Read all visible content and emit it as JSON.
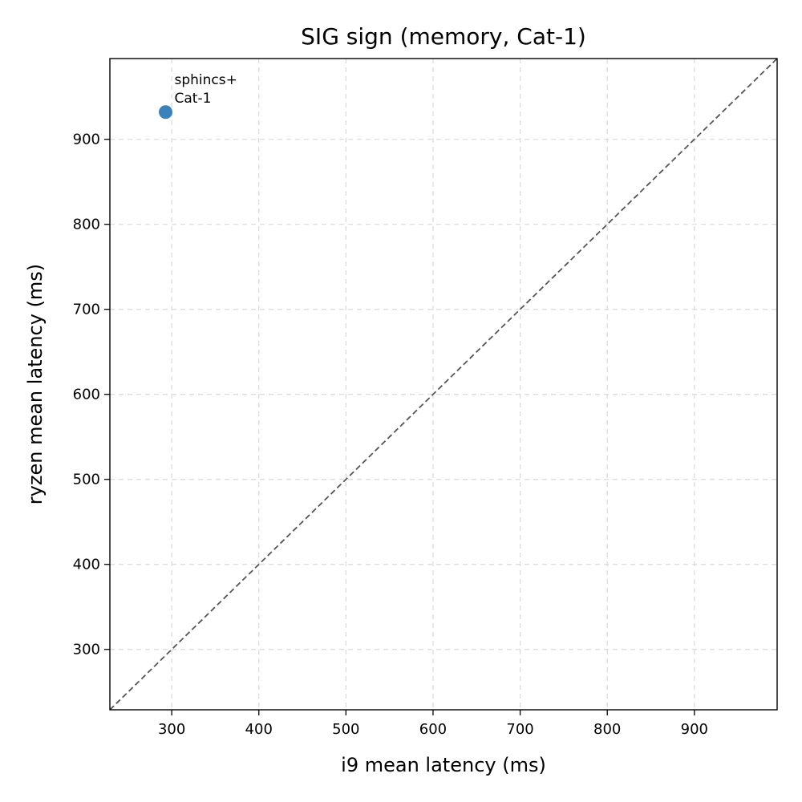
{
  "chart_data": {
    "type": "scatter",
    "title": "SIG sign (memory, Cat-1)",
    "xlabel": "i9 mean latency (ms)",
    "ylabel": "ryzen mean latency (ms)",
    "xlim": [
      229,
      995
    ],
    "ylim": [
      229,
      995
    ],
    "xticks": [
      300,
      400,
      500,
      600,
      700,
      800,
      900
    ],
    "yticks": [
      300,
      400,
      500,
      600,
      700,
      800,
      900
    ],
    "grid": true,
    "reference_line": "y = x",
    "series": [
      {
        "points": [
          {
            "x": 293,
            "y": 932,
            "label_line1": "sphincs+",
            "label_line2": "Cat-1"
          }
        ]
      }
    ]
  },
  "colors": {
    "point": "#2f7bb5",
    "reference_line": "#555555",
    "grid": "#d9d9d9",
    "axes": "#000000"
  }
}
